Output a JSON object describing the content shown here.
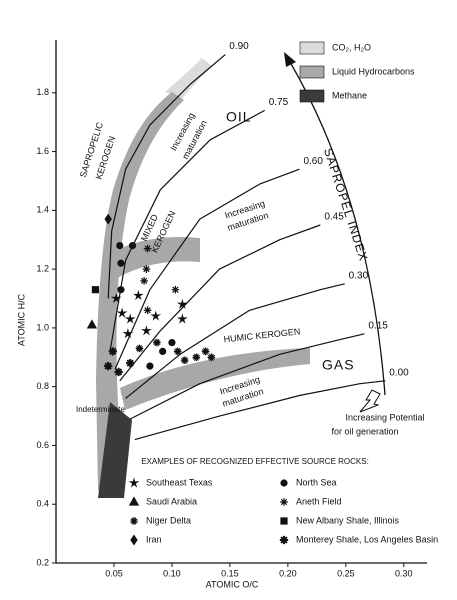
{
  "chart_data": {
    "type": "scatter",
    "xlabel": "ATOMIC O/C",
    "ylabel": "ATOMIC H/C",
    "xlim": [
      0,
      0.32
    ],
    "ylim": [
      0.2,
      2.0
    ],
    "xticks": [
      0.05,
      {
        "value": 0.1,
        "label": "0.10"
      },
      0.15,
      {
        "value": 0.2,
        "label": "0.20"
      },
      0.25,
      {
        "value": 0.3,
        "label": "0.30"
      }
    ],
    "yticks": [
      0.2,
      0.4,
      0.6,
      0.8,
      {
        "value": 1,
        "label": "1.0"
      },
      1.2,
      1.4,
      1.6,
      1.8
    ],
    "legend_title": "EXAMPLES OF RECOGNIZED EFFECTIVE SOURCE ROCKS:",
    "series": [
      {
        "name": "Southeast Texas",
        "marker": "star",
        "color": "#111",
        "x": [
          0.052,
          0.057,
          0.064,
          0.071,
          0.086,
          0.078,
          0.109,
          0.109,
          0.062
        ],
        "values": [
          1.1,
          1.05,
          1.03,
          1.11,
          1.04,
          0.99,
          1.03,
          1.08,
          0.98
        ]
      },
      {
        "name": "North Sea",
        "marker": "circle",
        "color": "#111",
        "x": [
          0.055,
          0.066,
          0.056,
          0.056,
          0.081,
          0.092,
          0.1
        ],
        "values": [
          1.28,
          1.28,
          1.22,
          1.13,
          0.87,
          0.92,
          0.95
        ]
      },
      {
        "name": "Saudi Arabia",
        "marker": "triangle",
        "color": "#111",
        "x": [
          0.031
        ],
        "values": [
          1.01
        ]
      },
      {
        "name": "Aneth Field",
        "marker": "asterisk",
        "color": "#111",
        "x": [
          0.078,
          0.076,
          0.079,
          0.103,
          0.079
        ],
        "values": [
          1.2,
          1.16,
          1.27,
          1.13,
          1.06
        ]
      },
      {
        "name": "Niger Delta",
        "marker": "flower",
        "color": "#111",
        "x": [
          0.072,
          0.105,
          0.111,
          0.121,
          0.129,
          0.134,
          0.087
        ],
        "values": [
          0.93,
          0.92,
          0.89,
          0.9,
          0.92,
          0.9,
          0.95
        ]
      },
      {
        "name": "New Albany Shale, Illinois",
        "marker": "square",
        "color": "#111",
        "x": [
          0.034
        ],
        "values": [
          1.13
        ]
      },
      {
        "name": "Iran",
        "marker": "diamond",
        "color": "#111",
        "x": [
          0.045
        ],
        "values": [
          1.37
        ]
      },
      {
        "name": "Monterey Shale, Los Angeles Basin",
        "marker": "asterisk-bold",
        "color": "#111",
        "x": [
          0.045,
          0.054,
          0.049,
          0.064
        ],
        "values": [
          0.87,
          0.85,
          0.92,
          0.88
        ]
      }
    ],
    "index_lines": [
      {
        "label": "0.90",
        "x": [
          0.045,
          0.048,
          0.06,
          0.081,
          0.116,
          0.146
        ],
        "y": [
          1.1,
          1.33,
          1.54,
          1.69,
          1.83,
          1.93
        ]
      },
      {
        "label": "0.75",
        "x": [
          0.047,
          0.06,
          0.09,
          0.133,
          0.18
        ],
        "y": [
          0.93,
          1.23,
          1.47,
          1.64,
          1.74
        ]
      },
      {
        "label": "0.60",
        "x": [
          0.051,
          0.081,
          0.124,
          0.176,
          0.21
        ],
        "y": [
          0.86,
          1.13,
          1.37,
          1.49,
          1.54
        ]
      },
      {
        "label": "0.45",
        "x": [
          0.055,
          0.09,
          0.141,
          0.193,
          0.228
        ],
        "y": [
          0.82,
          0.99,
          1.2,
          1.3,
          1.35
        ]
      },
      {
        "label": "0.30",
        "x": [
          0.06,
          0.107,
          0.167,
          0.228,
          0.249
        ],
        "y": [
          0.76,
          0.91,
          1.06,
          1.13,
          1.15
        ]
      },
      {
        "label": "0.15",
        "x": [
          0.064,
          0.124,
          0.193,
          0.245,
          0.266
        ],
        "y": [
          0.69,
          0.81,
          0.91,
          0.96,
          0.98
        ]
      },
      {
        "label": "0.00",
        "x": [
          0.068,
          0.141,
          0.21,
          0.262,
          0.284
        ],
        "y": [
          0.62,
          0.7,
          0.77,
          0.81,
          0.82
        ]
      }
    ],
    "regions": [
      {
        "name": "CO₂, H₂O",
        "color": "#dcdcdc"
      },
      {
        "name": "Liquid Hydrocarbons",
        "color": "#a8a8a8"
      },
      {
        "name": "Methane",
        "color": "#3a3a3a"
      }
    ],
    "annotations": [
      "OIL",
      "GAS",
      "SAPROPELIC",
      "KEROGEN",
      "MIXED",
      "KEROGEN",
      "HUMIC KEROGEN",
      "Increasing",
      "maturation",
      "Increasing",
      "maturation",
      "Increasing",
      "maturation",
      "Indeterminate",
      "Increasing Potential",
      "for oil generation",
      "SAPROPEL INDEX"
    ]
  }
}
